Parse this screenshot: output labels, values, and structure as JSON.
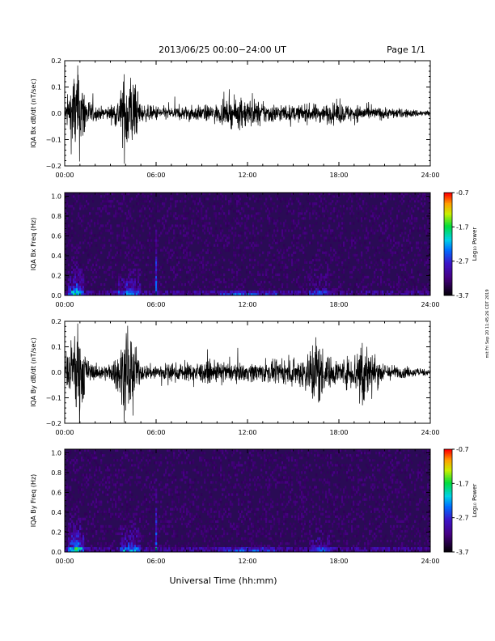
{
  "header": {
    "title": "2013/06/25  00:00−24:00 UT",
    "page": "Page 1/1"
  },
  "side_note": "mit Fri Sep 20 11:45:26 CDT 2019",
  "colorbar": {
    "label": "Log₁₀ Power",
    "ticks": [
      "-0.7",
      "-1.7",
      "-2.7",
      "-3.7"
    ],
    "range": [
      -3.7,
      -0.7
    ]
  },
  "colors": {
    "background_spectrogram": "#2a0b55",
    "trace": "#000000"
  },
  "chart_data": [
    {
      "type": "line",
      "ylabel": "IQA Bx dB/dt (nT/sec)",
      "xlim": [
        0,
        24
      ],
      "ylim": [
        -0.2,
        0.2
      ],
      "xticks": [
        "00:00",
        "06:00",
        "12:00",
        "18:00",
        "24:00"
      ],
      "yticks": [
        "0.2",
        "0.1",
        "0.0",
        "−0.1",
        "−0.2"
      ],
      "envelope": {
        "hours": [
          0,
          0.3,
          0.6,
          1.0,
          1.5,
          2.0,
          2.5,
          3.0,
          3.6,
          4.0,
          4.3,
          4.6,
          5.0,
          5.5,
          6.0,
          7.0,
          8.0,
          9.0,
          10.0,
          10.5,
          11.0,
          11.5,
          12.0,
          12.5,
          13.0,
          14.0,
          15.0,
          16.0,
          17.0,
          18.0,
          19.0,
          19.5,
          20.0,
          21.0,
          22.0,
          23.0,
          24.0
        ],
        "amplitude": [
          0.04,
          0.15,
          0.3,
          0.28,
          0.1,
          0.05,
          0.04,
          0.05,
          0.12,
          0.3,
          0.3,
          0.2,
          0.06,
          0.05,
          0.05,
          0.04,
          0.05,
          0.05,
          0.06,
          0.07,
          0.09,
          0.1,
          0.1,
          0.09,
          0.07,
          0.06,
          0.05,
          0.06,
          0.06,
          0.07,
          0.05,
          0.06,
          0.04,
          0.04,
          0.03,
          0.025,
          0.02
        ]
      }
    },
    {
      "type": "heatmap",
      "ylabel": "IQA Bx Freq (Hz)",
      "xlim": [
        0,
        24
      ],
      "ylim": [
        0,
        1.0
      ],
      "xticks": [
        "00:00",
        "06:00",
        "12:00",
        "18:00",
        "24:00"
      ],
      "yticks": [
        "1.0",
        "0.8",
        "0.6",
        "0.4",
        "0.2",
        "0.0"
      ],
      "bursts": [
        {
          "start_hour": 0.2,
          "end_hour": 1.3,
          "max_freq_hz": 0.38,
          "peak_log_power": -2.2
        },
        {
          "start_hour": 3.5,
          "end_hour": 5.0,
          "max_freq_hz": 0.35,
          "peak_log_power": -2.5
        },
        {
          "start_hour": 5.95,
          "end_hour": 6.05,
          "max_freq_hz": 0.85,
          "peak_log_power": -2.3
        },
        {
          "start_hour": 10.0,
          "end_hour": 14.0,
          "max_freq_hz": 0.06,
          "peak_log_power": -2.6
        },
        {
          "start_hour": 16.0,
          "end_hour": 17.5,
          "max_freq_hz": 0.3,
          "peak_log_power": -2.9
        }
      ]
    },
    {
      "type": "line",
      "ylabel": "IQA By dB/dt (nT/sec)",
      "xlim": [
        0,
        24
      ],
      "ylim": [
        -0.2,
        0.2
      ],
      "xticks": [
        "00:00",
        "06:00",
        "12:00",
        "18:00",
        "24:00"
      ],
      "yticks": [
        "0.2",
        "0.1",
        "0.0",
        "−0.1",
        "−0.2"
      ],
      "envelope": {
        "hours": [
          0,
          0.3,
          0.6,
          1.0,
          1.5,
          2.0,
          2.5,
          3.0,
          3.6,
          4.0,
          4.3,
          4.6,
          5.0,
          5.5,
          6.0,
          7.0,
          8.0,
          9.0,
          10.0,
          11.0,
          12.0,
          13.0,
          14.0,
          15.0,
          16.0,
          16.5,
          17.0,
          17.5,
          18.0,
          19.0,
          19.5,
          20.0,
          21.0,
          22.0,
          23.0,
          24.0
        ],
        "amplitude": [
          0.05,
          0.15,
          0.3,
          0.3,
          0.08,
          0.05,
          0.05,
          0.06,
          0.15,
          0.3,
          0.3,
          0.18,
          0.06,
          0.05,
          0.06,
          0.06,
          0.06,
          0.07,
          0.07,
          0.06,
          0.06,
          0.07,
          0.07,
          0.08,
          0.14,
          0.3,
          0.14,
          0.1,
          0.08,
          0.12,
          0.3,
          0.15,
          0.06,
          0.04,
          0.03,
          0.02
        ]
      }
    },
    {
      "type": "heatmap",
      "ylabel": "IQA By Freq (Hz)",
      "xlabel": "Universal Time (hh:mm)",
      "xlim": [
        0,
        24
      ],
      "ylim": [
        0,
        1.0
      ],
      "xticks": [
        "00:00",
        "06:00",
        "12:00",
        "18:00",
        "24:00"
      ],
      "yticks": [
        "1.0",
        "0.8",
        "0.6",
        "0.4",
        "0.2",
        "0.0"
      ],
      "bursts": [
        {
          "start_hour": 0.2,
          "end_hour": 1.3,
          "max_freq_hz": 0.4,
          "peak_log_power": -2.1
        },
        {
          "start_hour": 3.6,
          "end_hour": 5.0,
          "max_freq_hz": 0.35,
          "peak_log_power": -2.4
        },
        {
          "start_hour": 5.95,
          "end_hour": 6.05,
          "max_freq_hz": 1.0,
          "peak_log_power": -2.3
        },
        {
          "start_hour": 10.0,
          "end_hour": 14.0,
          "max_freq_hz": 0.07,
          "peak_log_power": -2.6
        },
        {
          "start_hour": 16.0,
          "end_hour": 17.5,
          "max_freq_hz": 0.3,
          "peak_log_power": -2.8
        }
      ]
    }
  ]
}
